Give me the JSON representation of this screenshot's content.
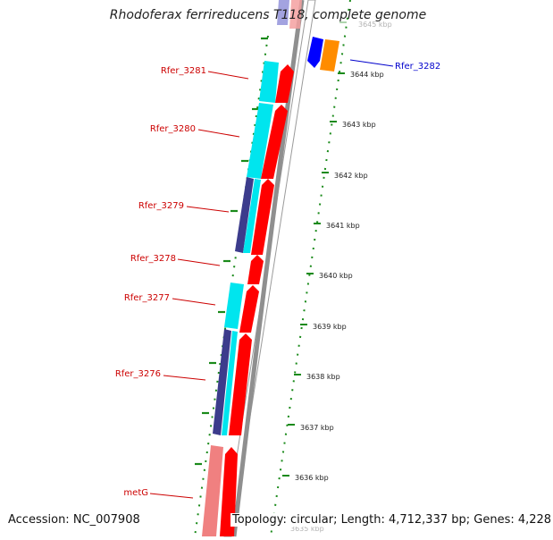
{
  "title": "Rhodoferax ferrireducens T118, complete genome",
  "accession": "Accession: NC_007908",
  "topology": "Topology: circular; Length: 4,712,337 bp; Genes: 4,228",
  "colors": {
    "axis": "#808080",
    "tick": "#1a8a1a",
    "red_gene": "#ff0000",
    "cyan_gene": "#00e5ee",
    "navy_gene": "#3c3c8c",
    "pink_gene": "#f08080",
    "blue_gene": "#0000ff",
    "orange_gene": "#ff8c00",
    "label_red": "#cc0000",
    "label_blue": "#0000cc"
  },
  "ticks": [
    {
      "label": "3645 kbp",
      "faded": true
    },
    {
      "label": "3644 kbp"
    },
    {
      "label": "3643 kbp"
    },
    {
      "label": "3642 kbp"
    },
    {
      "label": "3641 kbp"
    },
    {
      "label": "3640 kbp"
    },
    {
      "label": "3639 kbp"
    },
    {
      "label": "3638 kbp"
    },
    {
      "label": "3637 kbp"
    },
    {
      "label": "3636 kbp"
    },
    {
      "label": "3635 kbp",
      "faded": true
    }
  ],
  "gene_labels": {
    "rfer_3282": "Rfer_3282",
    "rfer_3281": "Rfer_3281",
    "rfer_3280": "Rfer_3280",
    "rfer_3279": "Rfer_3279",
    "rfer_3278": "Rfer_3278",
    "rfer_3277": "Rfer_3277",
    "rfer_3276": "Rfer_3276",
    "metg": "metG"
  }
}
